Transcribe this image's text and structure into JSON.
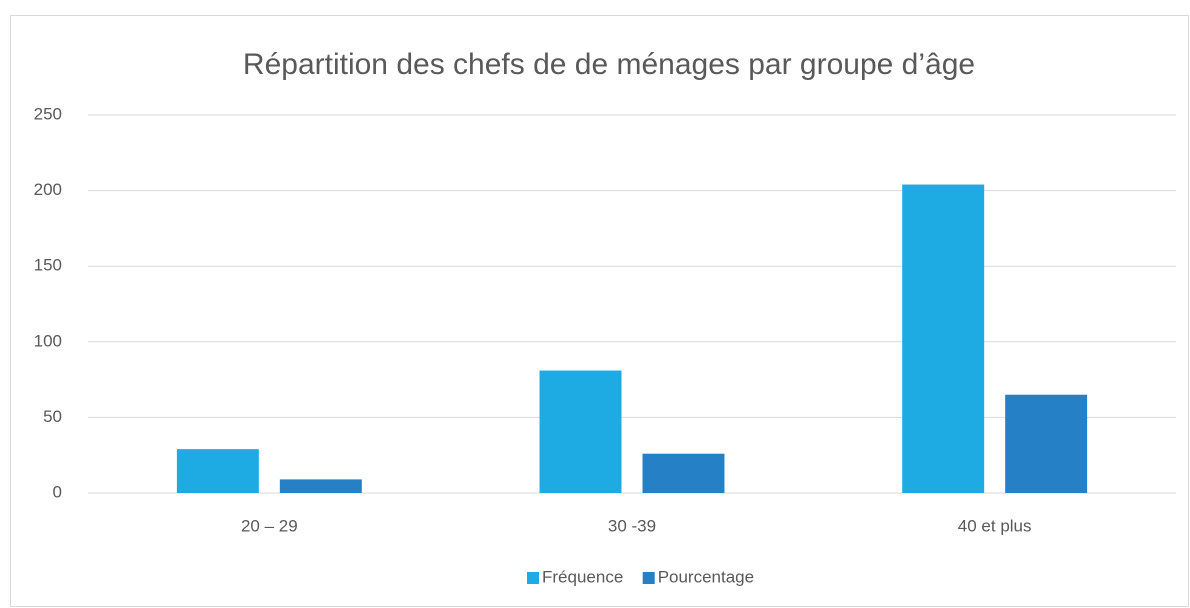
{
  "chart_data": {
    "type": "bar",
    "title": "Répartition des chefs de de ménages par groupe d’âge",
    "categories": [
      "20 – 29",
      "30 -39",
      "40 et plus"
    ],
    "series": [
      {
        "name": "Fréquence",
        "color": "#1eaae2",
        "values": [
          29,
          81,
          204
        ]
      },
      {
        "name": "Pourcentage",
        "color": "#2580c6",
        "values": [
          9,
          26,
          65
        ]
      }
    ],
    "ylim": [
      0,
      250
    ],
    "yticks": [
      0,
      50,
      100,
      150,
      200,
      250
    ],
    "grid": true,
    "legend": "bottom"
  }
}
